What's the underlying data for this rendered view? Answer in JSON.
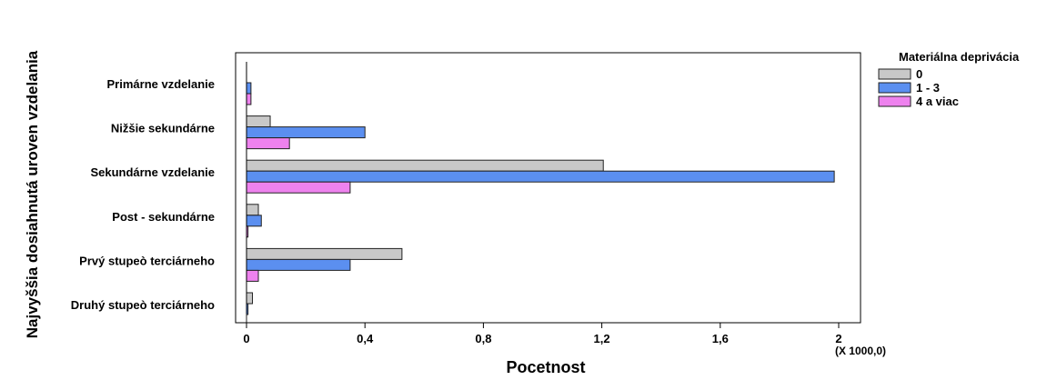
{
  "chart_data": {
    "type": "bar",
    "orientation": "horizontal",
    "categories": [
      "Primárne vzdelanie",
      "Nižšie sekundárne",
      "Sekundárne vzdelanie",
      "Post - sekundárne",
      "Prvý stupeò terciárneho",
      "Druhý stupeò terciárneho"
    ],
    "series": [
      {
        "name": "0",
        "color": "#c8c8c8",
        "values": [
          0,
          0.08,
          1.205,
          0.04,
          0.525,
          0.02
        ]
      },
      {
        "name": "1 - 3",
        "color": "#5b8ff0",
        "values": [
          0.015,
          0.4,
          1.985,
          0.05,
          0.35,
          0.005
        ]
      },
      {
        "name": "4 a viac",
        "color": "#ee82ee",
        "values": [
          0.015,
          0.145,
          0.35,
          0.005,
          0.04,
          0
        ]
      }
    ],
    "xlabel": "Pocetnost",
    "ylabel": "Najvyššia dosiahnutá uroven vzdelania",
    "x_multiplier_label": "(X 1000,0)",
    "xlim": [
      0,
      2.05
    ],
    "xticks": [
      0,
      0.4,
      0.8,
      1.2,
      1.6,
      2
    ],
    "xtick_labels": [
      "0",
      "0,4",
      "0,8",
      "1,2",
      "1,6",
      "2"
    ],
    "legend_title": "Materiálna deprivácia",
    "legend_position": "top-right",
    "grid": false
  }
}
